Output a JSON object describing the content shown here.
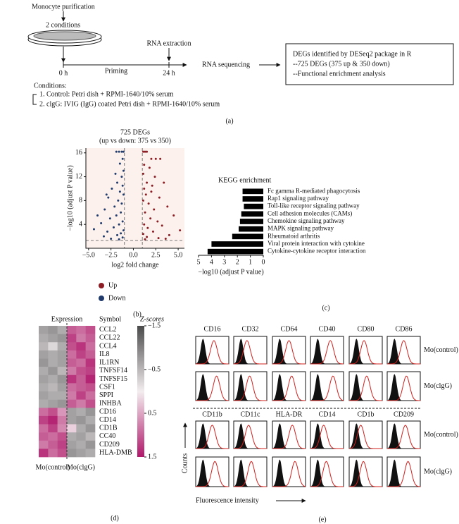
{
  "panel_a": {
    "step1": "Monocyte purification",
    "conditions_count": "2 conditions",
    "rna_extraction": "RNA extraction",
    "t0": "0 h",
    "priming": "Priming",
    "t24": "24 h",
    "rna_seq": "RNA sequencing",
    "result_lines": [
      "DEGs identified by DESeq2 package in R",
      "--725 DEGs (375 up & 350 down)",
      "--Functional enrichment analysis"
    ],
    "conditions_title": "Conditions:",
    "conditions": [
      "1. Control: Petri dish + RPMI-1640/10% serum",
      "2. clgG: IVIG (IgG) coated Petri dish + RPMI-1640/10% serum"
    ],
    "label": "(a)"
  },
  "chart_data": [
    {
      "type": "scatter",
      "title": "725 DEGs",
      "subtitle": "(up vs down: 375 vs 350)",
      "xlabel": "log2 fold change",
      "ylabel": "−log10 (adjust P value)",
      "xlim": [
        -5.3,
        5.7
      ],
      "ylim": [
        0,
        16.8
      ],
      "xticks": [
        {
          "value": -5,
          "label": "−5.0"
        },
        {
          "value": -2.5,
          "label": "−2.5"
        },
        {
          "value": 0,
          "label": "0.0"
        },
        {
          "value": 2.5,
          "label": "2.5"
        },
        {
          "value": 5,
          "label": "5.0"
        }
      ],
      "yticks": [
        4,
        8,
        12,
        16
      ],
      "thresholds": {
        "x": [
          -1,
          1
        ],
        "y": 1.3
      },
      "series": [
        {
          "name": "Up",
          "color": "#8b1c23",
          "x": [
            1.1,
            1.3,
            1.5,
            2.0,
            2.5,
            3.0,
            1.2,
            1.8,
            1.1,
            2.4,
            1.5,
            3.4,
            1.2,
            2.0,
            1.4,
            2.9,
            1.1,
            1.7,
            3.8,
            2.3,
            1.3,
            4.5,
            1.9,
            2.7,
            1.2,
            3.2,
            1.6,
            5.2,
            2.2,
            1.1,
            4.0,
            1.5,
            2.8,
            1.3,
            3.6,
            2.1
          ],
          "y": [
            16.2,
            16.2,
            16.2,
            15,
            15,
            15,
            14,
            13.5,
            12.5,
            12,
            11,
            11,
            10,
            9.5,
            9,
            8.5,
            8,
            7.5,
            7,
            6.5,
            6,
            5.5,
            5,
            4.5,
            4,
            3.8,
            3.4,
            3,
            2.8,
            2.4,
            2.2,
            1.9,
            1.7,
            1.5,
            1.6,
            10.5
          ]
        },
        {
          "name": "Down",
          "color": "#1f3a6b",
          "x": [
            -1.1,
            -1.3,
            -1.6,
            -1.9,
            -1.2,
            -1.5,
            -1.1,
            -2.0,
            -1.3,
            -1.8,
            -1.2,
            -2.4,
            -1.5,
            -1.1,
            -2.8,
            -1.7,
            -1.3,
            -2.1,
            -3.2,
            -1.4,
            -1.9,
            -2.6,
            -1.2,
            -3.6,
            -1.6,
            -2.2,
            -1.1,
            -4.4,
            -2.9,
            -1.4,
            -1.8,
            -3.3,
            -1.2,
            -2.5,
            -1.6,
            -4.0,
            -3.0
          ],
          "y": [
            16.2,
            16.2,
            16.2,
            16.2,
            15,
            14.2,
            13,
            12.5,
            12,
            11,
            10.5,
            10,
            9.5,
            9,
            8.5,
            8,
            7.5,
            7,
            6.5,
            6,
            5.5,
            5,
            4.5,
            4.2,
            4,
            3.5,
            3,
            3.2,
            2.8,
            2.5,
            2.2,
            2,
            1.8,
            1.6,
            1.5,
            5.5,
            9
          ]
        }
      ],
      "label": "(b)"
    },
    {
      "type": "barh",
      "title": "KEGG enrichment",
      "xlabel": "−log10 (adjust P value)",
      "categories": [
        "Fc gamma R-mediated phagocytosis",
        "Rap1 signaling pathway",
        "Toll-like receptor signaling pathway",
        "Cell adhesion molecules (CAMs)",
        "Chemokine signaling pathway",
        "MAPK signaling pathway",
        "Rheumatoid arthritis",
        "Viral protein interaction with cytokine",
        "Cytokine-cytokine receptor interaction"
      ],
      "values": [
        1.6,
        1.6,
        1.5,
        1.7,
        1.8,
        1.9,
        2.4,
        4.0,
        4.3
      ],
      "color": "#000000",
      "xlim": [
        5,
        0
      ],
      "xticks": [
        5,
        4,
        3,
        2,
        1,
        0
      ],
      "label": "(c)"
    },
    {
      "type": "heatmap",
      "title": "Expression",
      "row_header": "Symbol",
      "colorbar_title": "Z-scores",
      "groups": [
        "Mo(control)",
        "Mo(clgG)"
      ],
      "rows": [
        "CCL2",
        "CCL22",
        "CCL4",
        "IL8",
        "IL1RN",
        "TNFSF14",
        "TNFSF15",
        "CSF1",
        "SPPI",
        "INHBA",
        "CD16",
        "CD14",
        "CD1B",
        "CC40",
        "CD209",
        "HLA-DMB"
      ],
      "values": [
        [
          -0.7,
          -0.8,
          -0.6,
          1.0,
          0.9,
          1.1
        ],
        [
          -0.6,
          -0.7,
          -0.8,
          1.2,
          0.8,
          1.0
        ],
        [
          -0.5,
          -0.2,
          -0.6,
          1.1,
          1.3,
          0.9
        ],
        [
          -0.7,
          -0.6,
          -0.7,
          0.9,
          1.2,
          1.0
        ],
        [
          -0.8,
          -0.6,
          -0.7,
          1.0,
          0.9,
          1.3
        ],
        [
          -0.6,
          -0.8,
          -0.5,
          0.8,
          1.1,
          1.2
        ],
        [
          -0.7,
          -0.6,
          -0.8,
          1.3,
          1.0,
          1.4
        ],
        [
          -0.6,
          -0.5,
          -0.7,
          0.9,
          1.0,
          1.1
        ],
        [
          -0.7,
          -0.6,
          -0.6,
          0.8,
          1.2,
          0.9
        ],
        [
          -0.6,
          -0.7,
          -0.8,
          1.0,
          0.8,
          1.1
        ],
        [
          0.9,
          1.1,
          0.6,
          -0.7,
          -0.6,
          -0.8
        ],
        [
          1.2,
          1.4,
          0.8,
          -0.7,
          -0.8,
          -0.6
        ],
        [
          0.9,
          1.2,
          0.7,
          0.2,
          -0.6,
          -0.8
        ],
        [
          1.0,
          0.9,
          1.1,
          -0.6,
          -0.7,
          -0.5
        ],
        [
          0.8,
          1.0,
          1.2,
          -0.7,
          -0.6,
          -0.8
        ],
        [
          1.3,
          0.9,
          1.1,
          -0.8,
          -0.7,
          -0.6
        ]
      ],
      "zlim": [
        -1.5,
        1.5
      ],
      "zticks": [
        {
          "value": -1.5,
          "label": "−1.5"
        },
        {
          "value": -0.5,
          "label": "−0.5"
        },
        0.5,
        1.5
      ],
      "colors": [
        "#4a4a4a",
        "#f3edef",
        "#b0176a"
      ],
      "label": "(d)"
    }
  ],
  "panel_e": {
    "markers_top": [
      "CD16",
      "CD32",
      "CD64",
      "CD40",
      "CD80",
      "CD86"
    ],
    "markers_bottom": [
      "CD11b",
      "CD11c",
      "HLA-DR",
      "CD14",
      "CD1b",
      "CD209"
    ],
    "row_labels": [
      "Mo(control)",
      "Mo(clgG)",
      "Mo(control)",
      "Mo(clgG)"
    ],
    "ylabel": "Counts",
    "xlabel": "Fluorescence intensity",
    "label": "(e)"
  }
}
